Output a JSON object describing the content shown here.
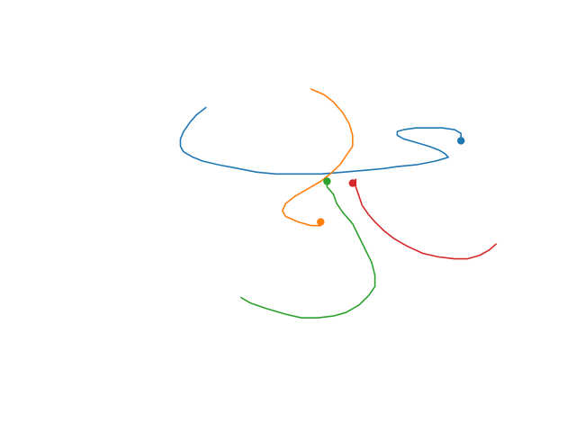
{
  "chart_data": {
    "type": "line",
    "grid": false,
    "axes_visible": false,
    "legend": "none",
    "xlim": [
      -0.8,
      0.6
    ],
    "ylim": [
      -0.9,
      0.9
    ],
    "series": [
      {
        "color": "#1f77b4",
        "marker": "start",
        "points": [
          [
            0.42,
            0.42
          ],
          [
            0.42,
            0.46
          ],
          [
            0.4,
            0.48
          ],
          [
            0.36,
            0.49
          ],
          [
            0.32,
            0.49
          ],
          [
            0.28,
            0.49
          ],
          [
            0.24,
            0.48
          ],
          [
            0.22,
            0.47
          ],
          [
            0.22,
            0.45
          ],
          [
            0.24,
            0.43
          ],
          [
            0.28,
            0.41
          ],
          [
            0.32,
            0.39
          ],
          [
            0.35,
            0.37
          ],
          [
            0.37,
            0.35
          ],
          [
            0.38,
            0.33
          ],
          [
            0.34,
            0.31
          ],
          [
            0.28,
            0.29
          ],
          [
            0.22,
            0.28
          ],
          [
            0.18,
            0.27
          ],
          [
            0.12,
            0.26
          ],
          [
            0.05,
            0.25
          ],
          [
            -0.02,
            0.24
          ],
          [
            -0.1,
            0.24
          ],
          [
            -0.16,
            0.24
          ],
          [
            -0.22,
            0.25
          ],
          [
            -0.28,
            0.27
          ],
          [
            -0.34,
            0.29
          ],
          [
            -0.39,
            0.31
          ],
          [
            -0.42,
            0.33
          ],
          [
            -0.45,
            0.36
          ],
          [
            -0.46,
            0.39
          ],
          [
            -0.46,
            0.43
          ],
          [
            -0.45,
            0.47
          ],
          [
            -0.43,
            0.52
          ],
          [
            -0.41,
            0.56
          ],
          [
            -0.38,
            0.6
          ]
        ]
      },
      {
        "color": "#ff7f0e",
        "marker": "start",
        "points": [
          [
            -0.02,
            -0.02
          ],
          [
            -0.02,
            -0.04
          ],
          [
            -0.05,
            -0.04
          ],
          [
            -0.09,
            -0.02
          ],
          [
            -0.13,
            0.01
          ],
          [
            -0.14,
            0.04
          ],
          [
            -0.13,
            0.08
          ],
          [
            -0.1,
            0.12
          ],
          [
            -0.06,
            0.16
          ],
          [
            -0.02,
            0.2
          ],
          [
            0.01,
            0.24
          ],
          [
            0.04,
            0.29
          ],
          [
            0.06,
            0.34
          ],
          [
            0.08,
            0.39
          ],
          [
            0.08,
            0.45
          ],
          [
            0.07,
            0.51
          ],
          [
            0.05,
            0.57
          ],
          [
            0.02,
            0.63
          ],
          [
            -0.01,
            0.67
          ],
          [
            -0.05,
            0.7
          ]
        ]
      },
      {
        "color": "#2ca02c",
        "marker": "start",
        "points": [
          [
            0.0,
            0.2
          ],
          [
            0.0,
            0.17
          ],
          [
            0.02,
            0.13
          ],
          [
            0.03,
            0.08
          ],
          [
            0.05,
            0.03
          ],
          [
            0.08,
            -0.03
          ],
          [
            0.1,
            -0.1
          ],
          [
            0.12,
            -0.17
          ],
          [
            0.14,
            -0.24
          ],
          [
            0.15,
            -0.31
          ],
          [
            0.15,
            -0.37
          ],
          [
            0.13,
            -0.42
          ],
          [
            0.1,
            -0.47
          ],
          [
            0.06,
            -0.51
          ],
          [
            0.02,
            -0.53
          ],
          [
            -0.03,
            -0.54
          ],
          [
            -0.08,
            -0.54
          ],
          [
            -0.13,
            -0.52
          ],
          [
            -0.19,
            -0.49
          ],
          [
            -0.24,
            -0.46
          ],
          [
            -0.27,
            -0.43
          ]
        ]
      },
      {
        "color": "#d62728",
        "marker": "start",
        "points": [
          [
            0.08,
            0.19
          ],
          [
            0.09,
            0.21
          ],
          [
            0.09,
            0.17
          ],
          [
            0.1,
            0.12
          ],
          [
            0.11,
            0.07
          ],
          [
            0.13,
            0.02
          ],
          [
            0.15,
            -0.02
          ],
          [
            0.18,
            -0.07
          ],
          [
            0.21,
            -0.11
          ],
          [
            0.25,
            -0.15
          ],
          [
            0.3,
            -0.19
          ],
          [
            0.35,
            -0.21
          ],
          [
            0.4,
            -0.22
          ],
          [
            0.44,
            -0.22
          ],
          [
            0.48,
            -0.2
          ],
          [
            0.51,
            -0.17
          ],
          [
            0.53,
            -0.14
          ]
        ]
      }
    ]
  }
}
